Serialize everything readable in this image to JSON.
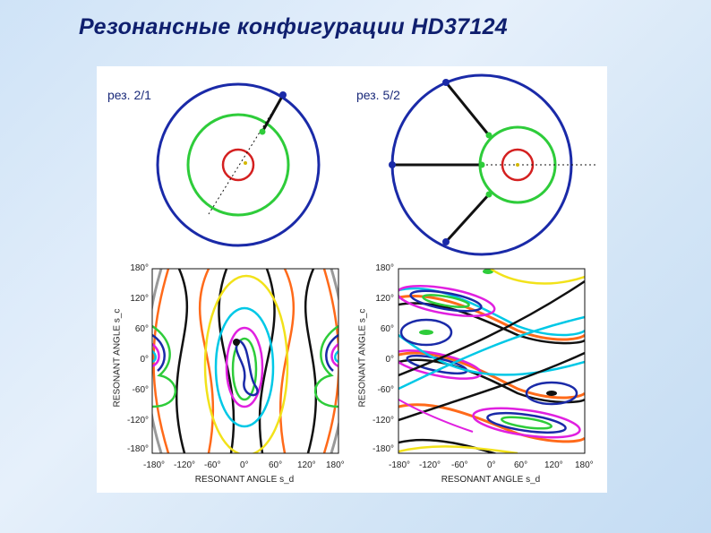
{
  "title": "Резонансные конфигурации HD37124",
  "left": {
    "label": "рез. 2/1",
    "y_ticks": [
      "180°",
      "120°",
      "60°",
      "0°",
      "-60°",
      "-120°",
      "-180°"
    ],
    "x_ticks": [
      "-180°",
      "-120°",
      "-60°",
      "0°",
      "60°",
      "120°",
      "180°"
    ],
    "y_axis_label": "RESONANT ANGLE s_c",
    "x_axis_label": "RESONANT ANGLE s_d"
  },
  "right": {
    "label": "рез. 5/2",
    "y_ticks": [
      "180°",
      "120°",
      "60°",
      "0°",
      "-60°",
      "-120°",
      "-180°"
    ],
    "x_ticks": [
      "-180°",
      "-120°",
      "-60°",
      "0°",
      "60°",
      "120°",
      "180°"
    ],
    "y_axis_label": "RESONANT ANGLE s_c",
    "x_axis_label": "RESONANT ANGLE s_d"
  },
  "colors": {
    "title": "#0f1f6e",
    "outer_orbit": "#1a2aa8",
    "middle_orbit": "#2ecc3a",
    "inner_orbit": "#d42020"
  }
}
